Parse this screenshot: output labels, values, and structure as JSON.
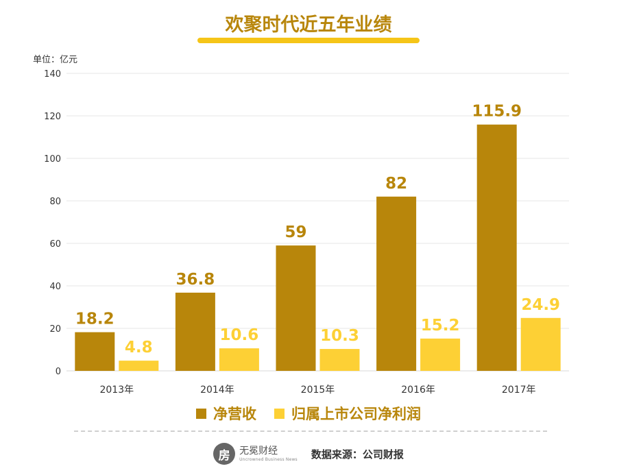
{
  "title": "欢聚时代近五年业绩",
  "unit_label": "单位：亿元",
  "colors": {
    "title": "#b8860b",
    "underline": "#f5c518",
    "revenue": "#b8860b",
    "profit": "#fdd035",
    "grid": "#e5e5e5",
    "tick": "#333333"
  },
  "chart_data": {
    "type": "bar",
    "title": "欢聚时代近五年业绩",
    "ylabel": "单位：亿元",
    "xlabel": "",
    "categories": [
      "2013年",
      "2014年",
      "2015年",
      "2016年",
      "2017年"
    ],
    "series": [
      {
        "name": "净营收",
        "values": [
          18.2,
          36.8,
          59,
          82,
          115.9
        ],
        "labels": [
          "18.2",
          "36.8",
          "59",
          "82",
          "115.9"
        ],
        "color": "#b8860b"
      },
      {
        "name": "归属上市公司净利润",
        "values": [
          4.8,
          10.6,
          10.3,
          15.2,
          24.9
        ],
        "labels": [
          "4.8",
          "10.6",
          "10.3",
          "15.2",
          "24.9"
        ],
        "color": "#fdd035"
      }
    ],
    "ylim": [
      0,
      140
    ],
    "yticks": [
      0,
      20,
      40,
      60,
      80,
      100,
      120,
      140
    ],
    "grid": true,
    "legend_position": "bottom"
  },
  "legend": [
    {
      "label": "净营收",
      "color": "#b8860b"
    },
    {
      "label": "归属上市公司净利润",
      "color": "#fdd035"
    }
  ],
  "footer": {
    "logo_glyph": "房",
    "logo_name": "无冕财经",
    "logo_sub": "Uncrowned Business News",
    "source": "数据来源：公司财报"
  }
}
